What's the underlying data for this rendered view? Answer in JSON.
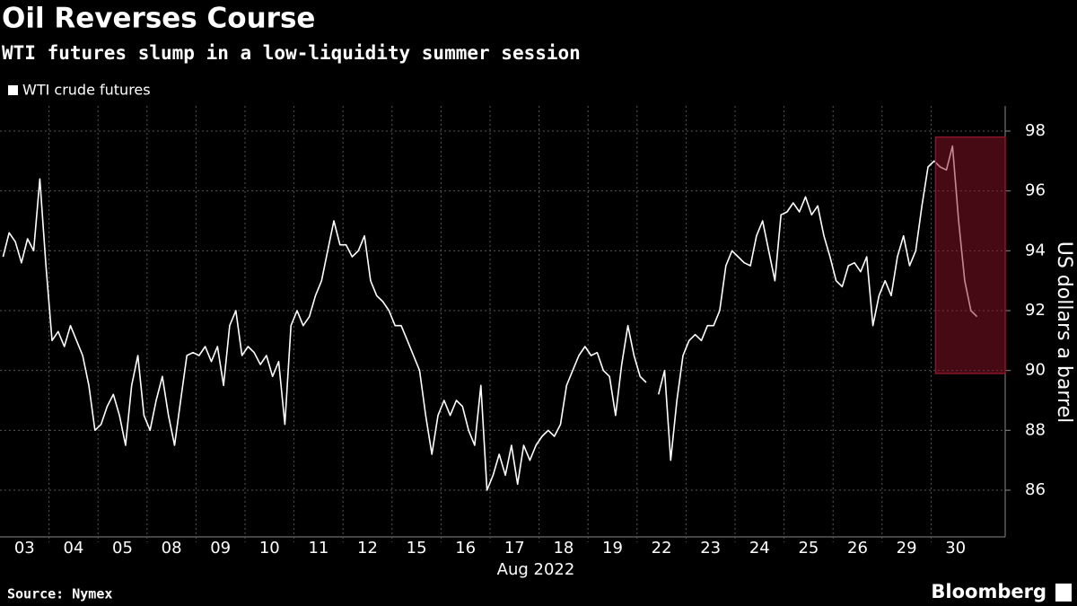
{
  "chart_data": {
    "type": "line",
    "title": "Oil Reverses Course",
    "subtitle": "WTI futures slump in a low-liquidity summer session",
    "x_group_label": "Aug 2022",
    "y_axis_label": "US dollars a barrel",
    "source": "Source: Nymex",
    "brand": "Bloomberg",
    "categories": [
      "03",
      "04",
      "05",
      "08",
      "09",
      "10",
      "11",
      "12",
      "15",
      "16",
      "17",
      "18",
      "19",
      "22",
      "23",
      "24",
      "25",
      "26",
      "29",
      "30"
    ],
    "series": [
      {
        "name": "WTI crude futures",
        "color": "#ffffff",
        "values": [
          [
            93.8,
            94.6,
            94.3,
            93.6,
            94.4,
            94.0,
            96.4,
            93.5
          ],
          [
            91.0,
            91.3,
            90.8,
            91.5,
            91.0,
            90.5,
            89.5,
            88.0
          ],
          [
            88.2,
            88.8,
            89.2,
            88.5,
            87.5,
            89.5,
            90.5,
            88.5
          ],
          [
            88.0,
            89.0,
            89.8,
            88.5,
            87.5,
            89.0,
            90.5,
            90.6
          ],
          [
            90.5,
            90.8,
            90.3,
            90.8,
            89.5,
            91.5,
            92.0,
            90.5
          ],
          [
            90.8,
            90.6,
            90.2,
            90.5,
            89.8,
            90.3,
            88.2,
            91.5
          ],
          [
            92.0,
            91.5,
            91.8,
            92.5,
            93.0,
            94.0,
            95.0,
            94.2
          ],
          [
            94.2,
            93.8,
            94.0,
            94.5,
            93.0,
            92.5,
            92.3,
            92.0
          ],
          [
            91.5,
            91.5,
            91.0,
            90.5,
            90.0,
            88.5,
            87.2,
            88.5
          ],
          [
            89.0,
            88.5,
            89.0,
            88.8,
            88.0,
            87.5,
            89.5,
            86.0
          ],
          [
            86.5,
            87.2,
            86.5,
            87.5,
            86.2,
            87.5,
            87.0,
            87.5
          ],
          [
            87.8,
            88.0,
            87.8,
            88.2,
            89.5,
            90.0,
            90.5,
            90.8
          ],
          [
            90.5,
            90.6,
            90.0,
            89.8,
            88.5,
            90.2,
            91.5,
            90.5
          ],
          [
            89.8,
            89.6,
            null,
            89.2,
            90.0,
            87.0,
            89.0,
            90.5
          ],
          [
            91.0,
            91.2,
            91.0,
            91.5,
            91.5,
            92.0,
            93.5,
            94.0
          ],
          [
            93.8,
            93.6,
            93.5,
            94.5,
            95.0,
            94.0,
            93.0,
            95.2
          ],
          [
            95.3,
            95.6,
            95.3,
            95.8,
            95.2,
            95.5,
            94.5,
            93.8
          ],
          [
            93.0,
            92.8,
            93.5,
            93.6,
            93.3,
            93.8,
            91.5,
            92.5
          ],
          [
            93.0,
            92.5,
            93.8,
            94.5,
            93.5,
            94.0,
            95.5,
            96.8
          ],
          [
            97.0,
            96.8,
            96.7,
            97.5,
            95.0,
            93.0,
            92.0,
            91.8
          ]
        ]
      }
    ],
    "ylim": [
      84.44,
      98.84
    ],
    "yticks": [
      86,
      88,
      90,
      92,
      94,
      96,
      98
    ],
    "grid": true,
    "legend": "top-left",
    "highlight": {
      "from": 89.9,
      "to": 97.8,
      "color": "#8c1428",
      "opacity": 0.5
    }
  }
}
